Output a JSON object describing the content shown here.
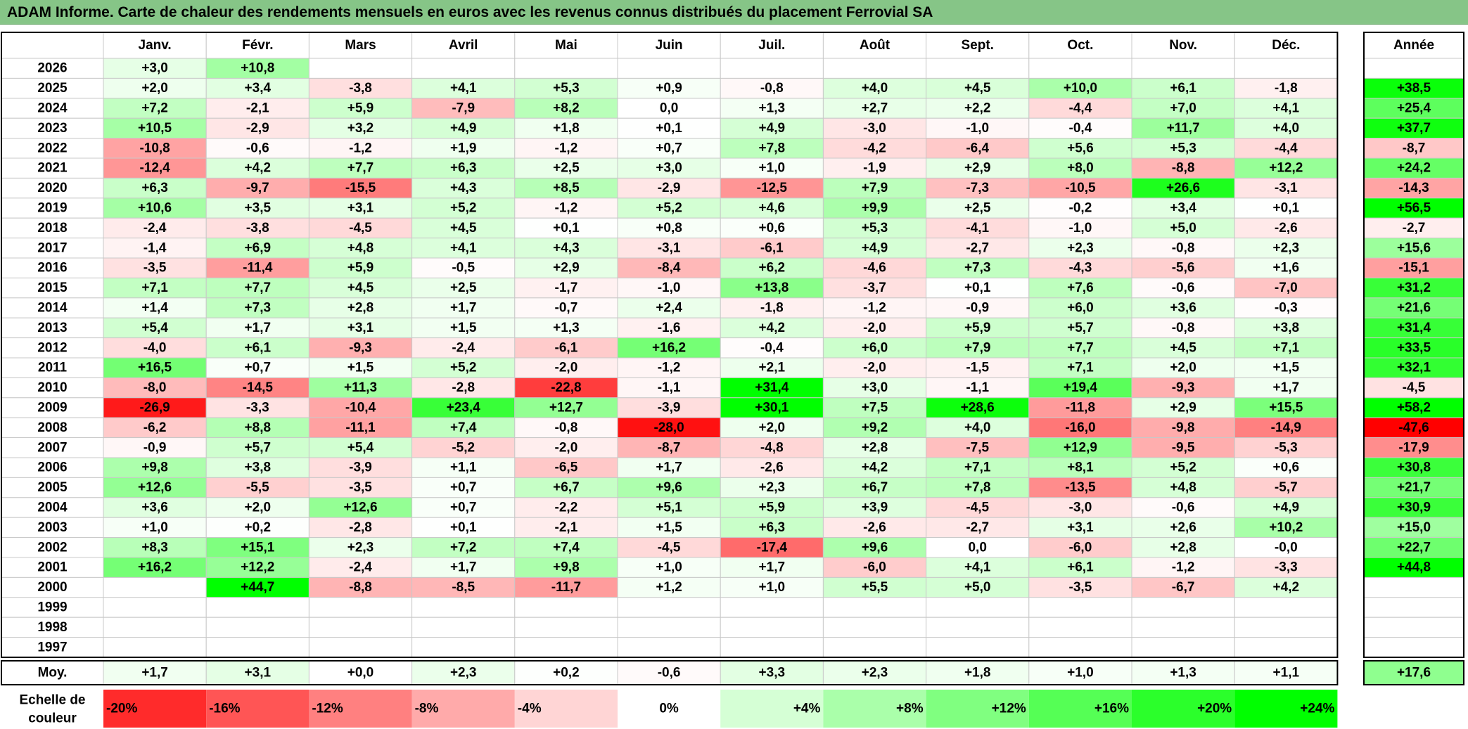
{
  "title": "ADAM Informe. Carte de chaleur des rendements mensuels en euros avec les revenus connus distribués du placement Ferrovial SA",
  "chart_data": {
    "type": "heatmap",
    "columns": [
      "Janv.",
      "Févr.",
      "Mars",
      "Avril",
      "Mai",
      "Juin",
      "Juil.",
      "Août",
      "Sept.",
      "Oct.",
      "Nov.",
      "Déc."
    ],
    "annual_header": "Année",
    "rows": [
      {
        "year": "2026",
        "months": [
          "+3,0",
          "+10,8",
          "",
          "",
          "",
          "",
          "",
          "",
          "",
          "",
          "",
          ""
        ],
        "annual": ""
      },
      {
        "year": "2025",
        "months": [
          "+2,0",
          "+3,4",
          "-3,8",
          "+4,1",
          "+5,3",
          "+0,9",
          "-0,8",
          "+4,0",
          "+4,5",
          "+10,0",
          "+6,1",
          "-1,8"
        ],
        "annual": "+38,5"
      },
      {
        "year": "2024",
        "months": [
          "+7,2",
          "-2,1",
          "+5,9",
          "-7,9",
          "+8,2",
          "0,0",
          "+1,3",
          "+2,7",
          "+2,2",
          "-4,4",
          "+7,0",
          "+4,1"
        ],
        "annual": "+25,4"
      },
      {
        "year": "2023",
        "months": [
          "+10,5",
          "-2,9",
          "+3,2",
          "+4,9",
          "+1,8",
          "+0,1",
          "+4,9",
          "-3,0",
          "-1,0",
          "-0,4",
          "+11,7",
          "+4,0"
        ],
        "annual": "+37,7"
      },
      {
        "year": "2022",
        "months": [
          "-10,8",
          "-0,6",
          "-1,2",
          "+1,9",
          "-1,2",
          "+0,7",
          "+7,8",
          "-4,2",
          "-6,4",
          "+5,6",
          "+5,3",
          "-4,4"
        ],
        "annual": "-8,7"
      },
      {
        "year": "2021",
        "months": [
          "-12,4",
          "+4,2",
          "+7,7",
          "+6,3",
          "+2,5",
          "+3,0",
          "+1,0",
          "-1,9",
          "+2,9",
          "+8,0",
          "-8,8",
          "+12,2"
        ],
        "annual": "+24,2"
      },
      {
        "year": "2020",
        "months": [
          "+6,3",
          "-9,7",
          "-15,5",
          "+4,3",
          "+8,5",
          "-2,9",
          "-12,5",
          "+7,9",
          "-7,3",
          "-10,5",
          "+26,6",
          "-3,1"
        ],
        "annual": "-14,3"
      },
      {
        "year": "2019",
        "months": [
          "+10,6",
          "+3,5",
          "+3,1",
          "+5,2",
          "-1,2",
          "+5,2",
          "+4,6",
          "+9,9",
          "+2,5",
          "-0,2",
          "+3,4",
          "+0,1"
        ],
        "annual": "+56,5"
      },
      {
        "year": "2018",
        "months": [
          "-2,4",
          "-3,8",
          "-4,5",
          "+4,5",
          "+0,1",
          "+0,8",
          "+0,6",
          "+5,3",
          "-4,1",
          "-1,0",
          "+5,0",
          "-2,6"
        ],
        "annual": "-2,7"
      },
      {
        "year": "2017",
        "months": [
          "-1,4",
          "+6,9",
          "+4,8",
          "+4,1",
          "+4,3",
          "-3,1",
          "-6,1",
          "+4,9",
          "-2,7",
          "+2,3",
          "-0,8",
          "+2,3"
        ],
        "annual": "+15,6"
      },
      {
        "year": "2016",
        "months": [
          "-3,5",
          "-11,4",
          "+5,9",
          "-0,5",
          "+2,9",
          "-8,4",
          "+6,2",
          "-4,6",
          "+7,3",
          "-4,3",
          "-5,6",
          "+1,6"
        ],
        "annual": "-15,1"
      },
      {
        "year": "2015",
        "months": [
          "+7,1",
          "+7,7",
          "+4,5",
          "+2,5",
          "-1,7",
          "-1,0",
          "+13,8",
          "-3,7",
          "+0,1",
          "+7,6",
          "-0,6",
          "-7,0"
        ],
        "annual": "+31,2"
      },
      {
        "year": "2014",
        "months": [
          "+1,4",
          "+7,3",
          "+2,8",
          "+1,7",
          "-0,7",
          "+2,4",
          "-1,8",
          "-1,2",
          "-0,9",
          "+6,0",
          "+3,6",
          "-0,3"
        ],
        "annual": "+21,6"
      },
      {
        "year": "2013",
        "months": [
          "+5,4",
          "+1,7",
          "+3,1",
          "+1,5",
          "+1,3",
          "-1,6",
          "+4,2",
          "-2,0",
          "+5,9",
          "+5,7",
          "-0,8",
          "+3,8"
        ],
        "annual": "+31,4"
      },
      {
        "year": "2012",
        "months": [
          "-4,0",
          "+6,1",
          "-9,3",
          "-2,4",
          "-6,1",
          "+16,2",
          "-0,4",
          "+6,0",
          "+7,9",
          "+7,7",
          "+4,5",
          "+7,1"
        ],
        "annual": "+33,5"
      },
      {
        "year": "2011",
        "months": [
          "+16,5",
          "+0,7",
          "+1,5",
          "+5,2",
          "-2,0",
          "-1,2",
          "+2,1",
          "-2,0",
          "-1,5",
          "+7,1",
          "+2,0",
          "+1,5"
        ],
        "annual": "+32,1"
      },
      {
        "year": "2010",
        "months": [
          "-8,0",
          "-14,5",
          "+11,3",
          "-2,8",
          "-22,8",
          "-1,1",
          "+31,4",
          "+3,0",
          "-1,1",
          "+19,4",
          "-9,3",
          "+1,7"
        ],
        "annual": "-4,5"
      },
      {
        "year": "2009",
        "months": [
          "-26,9",
          "-3,3",
          "-10,4",
          "+23,4",
          "+12,7",
          "-3,9",
          "+30,1",
          "+7,5",
          "+28,6",
          "-11,8",
          "+2,9",
          "+15,5"
        ],
        "annual": "+58,2"
      },
      {
        "year": "2008",
        "months": [
          "-6,2",
          "+8,8",
          "-11,1",
          "+7,4",
          "-0,8",
          "-28,0",
          "+2,0",
          "+9,2",
          "+4,0",
          "-16,0",
          "-9,8",
          "-14,9"
        ],
        "annual": "-47,6"
      },
      {
        "year": "2007",
        "months": [
          "-0,9",
          "+5,7",
          "+5,4",
          "-5,2",
          "-2,0",
          "-8,7",
          "-4,8",
          "+2,8",
          "-7,5",
          "+12,9",
          "-9,5",
          "-5,3"
        ],
        "annual": "-17,9"
      },
      {
        "year": "2006",
        "months": [
          "+9,8",
          "+3,8",
          "-3,9",
          "+1,1",
          "-6,5",
          "+1,7",
          "-2,6",
          "+4,2",
          "+7,1",
          "+8,1",
          "+5,2",
          "+0,6"
        ],
        "annual": "+30,8"
      },
      {
        "year": "2005",
        "months": [
          "+12,6",
          "-5,5",
          "-3,5",
          "+0,7",
          "+6,7",
          "+9,6",
          "+2,3",
          "+6,7",
          "+7,8",
          "-13,5",
          "+4,8",
          "-5,7"
        ],
        "annual": "+21,7"
      },
      {
        "year": "2004",
        "months": [
          "+3,6",
          "+2,0",
          "+12,6",
          "+0,7",
          "-2,2",
          "+5,1",
          "+5,9",
          "+3,9",
          "-4,5",
          "-3,0",
          "-0,6",
          "+4,9"
        ],
        "annual": "+30,9"
      },
      {
        "year": "2003",
        "months": [
          "+1,0",
          "+0,2",
          "-2,8",
          "+0,1",
          "-2,1",
          "+1,5",
          "+6,3",
          "-2,6",
          "-2,7",
          "+3,1",
          "+2,6",
          "+10,2"
        ],
        "annual": "+15,0"
      },
      {
        "year": "2002",
        "months": [
          "+8,3",
          "+15,1",
          "+2,3",
          "+7,2",
          "+7,4",
          "-4,5",
          "-17,4",
          "+9,6",
          "0,0",
          "-6,0",
          "+2,8",
          "-0,0"
        ],
        "annual": "+22,7"
      },
      {
        "year": "2001",
        "months": [
          "+16,2",
          "+12,2",
          "-2,4",
          "+1,7",
          "+9,8",
          "+1,0",
          "+1,7",
          "-6,0",
          "+4,1",
          "+6,1",
          "-1,2",
          "-3,3"
        ],
        "annual": "+44,8"
      },
      {
        "year": "2000",
        "months": [
          "",
          "+44,7",
          "-8,8",
          "-8,5",
          "-11,7",
          "+1,2",
          "+1,0",
          "+5,5",
          "+5,0",
          "-3,5",
          "-6,7",
          "+4,2"
        ],
        "annual": ""
      },
      {
        "year": "1999",
        "months": [
          "",
          "",
          "",
          "",
          "",
          "",
          "",
          "",
          "",
          "",
          "",
          ""
        ],
        "annual": ""
      },
      {
        "year": "1998",
        "months": [
          "",
          "",
          "",
          "",
          "",
          "",
          "",
          "",
          "",
          "",
          "",
          ""
        ],
        "annual": ""
      },
      {
        "year": "1997",
        "months": [
          "",
          "",
          "",
          "",
          "",
          "",
          "",
          "",
          "",
          "",
          "",
          ""
        ],
        "annual": ""
      }
    ],
    "average": {
      "label": "Moy.",
      "months": [
        "+1,7",
        "+3,1",
        "+0,0",
        "+2,3",
        "+0,2",
        "-0,6",
        "+3,3",
        "+2,3",
        "+1,8",
        "+1,0",
        "+1,3",
        "+1,1"
      ],
      "annual": "+17,6"
    },
    "color_scale": {
      "label_line1": "Echelle de",
      "label_line2": "couleur",
      "steps": [
        {
          "label": "-20%",
          "value": -20
        },
        {
          "label": "-16%",
          "value": -16
        },
        {
          "label": "-12%",
          "value": -12
        },
        {
          "label": "-8%",
          "value": -8
        },
        {
          "label": "-4%",
          "value": -4
        },
        {
          "label": "0%",
          "value": 0
        },
        {
          "label": "+4%",
          "value": 4
        },
        {
          "label": "+8%",
          "value": 8
        },
        {
          "label": "+12%",
          "value": 12
        },
        {
          "label": "+16%",
          "value": 16
        },
        {
          "label": "+20%",
          "value": 20
        },
        {
          "label": "+24%",
          "value": 24
        }
      ]
    },
    "colors": {
      "title_bar": "#86c587",
      "negative_max": "#ff0000",
      "neutral": "#ffffff",
      "positive_max": "#00ff00"
    }
  }
}
